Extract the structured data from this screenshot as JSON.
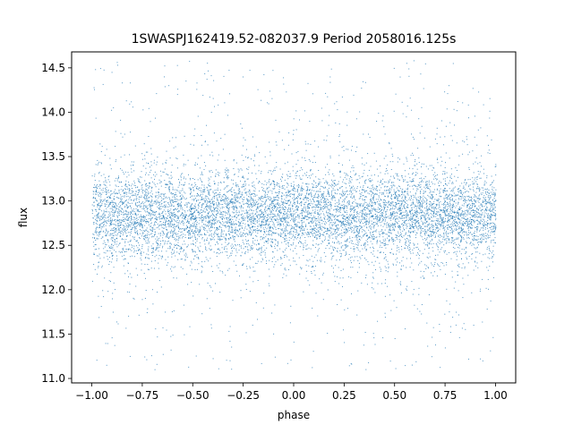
{
  "chart_data": {
    "type": "scatter",
    "title": "1SWASPJ162419.52-082037.9 Period 2058016.125s",
    "xlabel": "phase",
    "ylabel": "flux",
    "xlim": [
      -1.1,
      1.1
    ],
    "ylim": [
      10.95,
      14.68
    ],
    "x_ticks": [
      -1.0,
      -0.75,
      -0.5,
      -0.25,
      0.0,
      0.25,
      0.5,
      0.75,
      1.0
    ],
    "x_tick_labels": [
      "−1.00",
      "−0.75",
      "−0.50",
      "−0.25",
      "0.00",
      "0.25",
      "0.50",
      "0.75",
      "1.00"
    ],
    "y_ticks": [
      11.0,
      11.5,
      12.0,
      12.5,
      13.0,
      13.5,
      14.0,
      14.5
    ],
    "y_tick_labels": [
      "11.0",
      "11.5",
      "12.0",
      "12.5",
      "13.0",
      "13.5",
      "14.0",
      "14.5"
    ],
    "grid": false,
    "marker_color": "#1f77b4",
    "series": [
      {
        "x_range": [
          -1.0,
          1.0
        ],
        "core_flux_range": [
          12.35,
          13.4
        ],
        "median_flux": 12.85,
        "outlier_flux_range": [
          11.1,
          14.6
        ],
        "point_count_estimate": 60000
      }
    ]
  }
}
